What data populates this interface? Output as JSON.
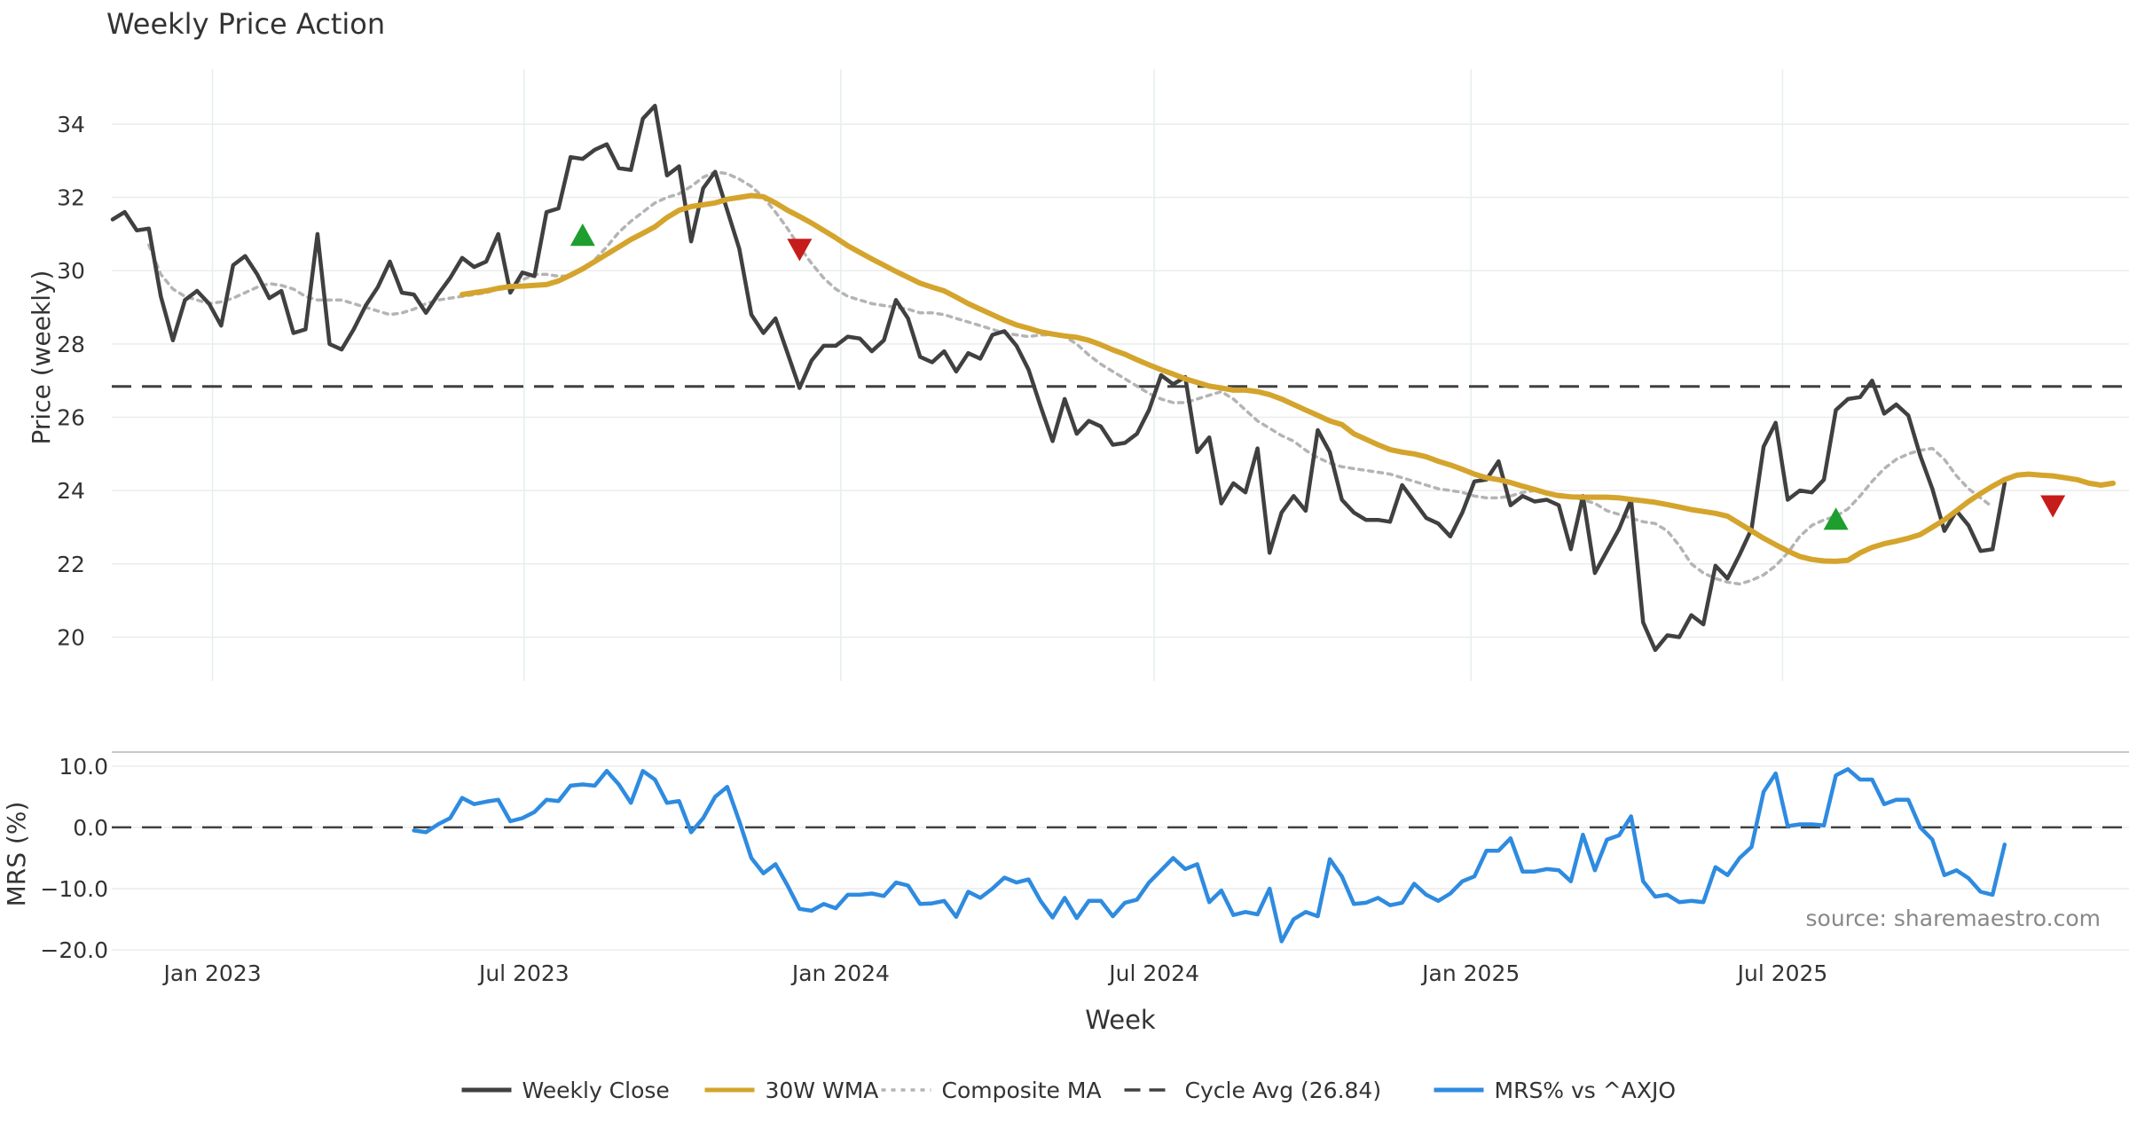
{
  "chart_data": [
    {
      "type": "line",
      "panel": "price",
      "title": "Weekly Price Action",
      "ylabel": "Price (weekly)",
      "xlabel": "Week",
      "ylim": [
        18.8,
        35.5
      ],
      "yticks": [
        20,
        22,
        24,
        26,
        28,
        30,
        32,
        34
      ],
      "grid": true,
      "x_start": "2022-11-04",
      "x_end": "2025-11-21",
      "series": [
        {
          "name": "Weekly Close",
          "color": "#404040",
          "style": "solid",
          "start_week": 0,
          "values": [
            31.4,
            31.6,
            31.1,
            31.15,
            29.3,
            28.1,
            29.2,
            29.45,
            29.1,
            28.5,
            30.15,
            30.4,
            29.9,
            29.25,
            29.45,
            28.3,
            28.4,
            31.0,
            28.0,
            27.85,
            28.4,
            29.05,
            29.55,
            30.25,
            29.4,
            29.35,
            28.85,
            29.35,
            29.8,
            30.35,
            30.1,
            30.25,
            31.0,
            29.4,
            29.95,
            29.85,
            31.6,
            31.7,
            33.1,
            33.05,
            33.3,
            33.45,
            32.8,
            32.75,
            34.15,
            34.5,
            32.6,
            32.85,
            30.8,
            32.25,
            32.7,
            31.65,
            30.6,
            28.8,
            28.3,
            28.7,
            27.75,
            26.8,
            27.55,
            27.95,
            27.95,
            28.2,
            28.15,
            27.8,
            28.1,
            29.2,
            28.7,
            27.65,
            27.5,
            27.8,
            27.25,
            27.75,
            27.6,
            28.25,
            28.35,
            27.95,
            27.3,
            26.3,
            25.35,
            26.5,
            25.55,
            25.9,
            25.75,
            25.25,
            25.3,
            25.55,
            26.2,
            27.15,
            26.9,
            27.1,
            25.05,
            25.45,
            23.65,
            24.2,
            23.95,
            25.15,
            22.3,
            23.4,
            23.85,
            23.45,
            25.65,
            25.05,
            23.75,
            23.4,
            23.2,
            23.2,
            23.15,
            24.15,
            23.7,
            23.25,
            23.1,
            22.75,
            23.4,
            24.25,
            24.3,
            24.8,
            23.6,
            23.85,
            23.7,
            23.75,
            23.6,
            22.4,
            23.85,
            21.75,
            22.35,
            22.95,
            23.75,
            20.4,
            19.65,
            20.05,
            20.0,
            20.6,
            20.35,
            21.95,
            21.6,
            22.25,
            22.95,
            25.2,
            25.85,
            23.75,
            24.0,
            23.95,
            24.3,
            26.2,
            26.5,
            26.55,
            27.0,
            26.1,
            26.35,
            26.05,
            24.95,
            24.05,
            22.9,
            23.45,
            23.05,
            22.35,
            22.4,
            24.2
          ]
        },
        {
          "name": "30W WMA",
          "color": "#d4a42c",
          "style": "solid",
          "start_week": 29,
          "values": [
            29.35,
            29.4,
            29.45,
            29.52,
            29.57,
            29.58,
            29.6,
            29.62,
            29.72,
            29.88,
            30.05,
            30.25,
            30.45,
            30.65,
            30.85,
            31.02,
            31.2,
            31.45,
            31.65,
            31.75,
            31.8,
            31.85,
            31.95,
            32.0,
            32.05,
            32.02,
            31.85,
            31.65,
            31.48,
            31.3,
            31.1,
            30.9,
            30.68,
            30.5,
            30.32,
            30.15,
            29.98,
            29.82,
            29.66,
            29.55,
            29.45,
            29.28,
            29.1,
            28.95,
            28.8,
            28.65,
            28.52,
            28.43,
            28.33,
            28.27,
            28.22,
            28.18,
            28.1,
            27.98,
            27.84,
            27.72,
            27.57,
            27.43,
            27.3,
            27.18,
            27.05,
            26.95,
            26.85,
            26.8,
            26.74,
            26.74,
            26.7,
            26.62,
            26.5,
            26.35,
            26.2,
            26.05,
            25.9,
            25.8,
            25.55,
            25.4,
            25.25,
            25.12,
            25.05,
            25.0,
            24.92,
            24.8,
            24.7,
            24.58,
            24.45,
            24.35,
            24.3,
            24.22,
            24.12,
            24.03,
            23.93,
            23.86,
            23.83,
            23.82,
            23.82,
            23.82,
            23.8,
            23.76,
            23.72,
            23.68,
            23.62,
            23.55,
            23.48,
            23.43,
            23.38,
            23.3,
            23.1,
            22.9,
            22.7,
            22.52,
            22.35,
            22.2,
            22.12,
            22.08,
            22.07,
            22.1,
            22.3,
            22.45,
            22.55,
            22.62,
            22.7,
            22.8,
            23.0,
            23.2,
            23.45,
            23.7,
            23.92,
            24.12,
            24.3,
            24.42,
            24.45,
            24.42,
            24.4,
            24.35,
            24.3,
            24.2,
            24.15,
            24.2
          ]
        },
        {
          "name": "Composite MA",
          "color": "#b4b4b4",
          "style": "dotted",
          "start_week": 3,
          "values": [
            30.7,
            29.9,
            29.5,
            29.3,
            29.2,
            29.1,
            29.15,
            29.25,
            29.4,
            29.55,
            29.65,
            29.6,
            29.5,
            29.3,
            29.2,
            29.2,
            29.2,
            29.1,
            29.0,
            28.9,
            28.8,
            28.85,
            28.95,
            29.1,
            29.2,
            29.25,
            29.3,
            29.35,
            29.4,
            29.5,
            29.6,
            29.75,
            29.9,
            29.9,
            29.85,
            29.85,
            30.05,
            30.3,
            30.65,
            31.05,
            31.35,
            31.6,
            31.85,
            32.0,
            32.1,
            32.3,
            32.55,
            32.7,
            32.65,
            32.5,
            32.3,
            32.0,
            31.6,
            31.15,
            30.65,
            30.2,
            29.8,
            29.5,
            29.3,
            29.2,
            29.1,
            29.05,
            29.0,
            28.95,
            28.85,
            28.85,
            28.8,
            28.7,
            28.6,
            28.5,
            28.4,
            28.3,
            28.25,
            28.2,
            28.25,
            28.25,
            28.2,
            28.0,
            27.7,
            27.45,
            27.25,
            27.05,
            26.85,
            26.65,
            26.5,
            26.4,
            26.4,
            26.5,
            26.6,
            26.7,
            26.5,
            26.2,
            25.9,
            25.7,
            25.5,
            25.35,
            25.1,
            24.9,
            24.75,
            24.65,
            24.6,
            24.55,
            24.5,
            24.45,
            24.35,
            24.25,
            24.15,
            24.05,
            24.0,
            23.95,
            23.85,
            23.8,
            23.8,
            23.85,
            23.95,
            24.0,
            23.95,
            23.9,
            23.85,
            23.75,
            23.65,
            23.45,
            23.35,
            23.25,
            23.15,
            23.1,
            22.9,
            22.5,
            22.0,
            21.75,
            21.6,
            21.5,
            21.45,
            21.55,
            21.7,
            21.95,
            22.3,
            22.75,
            23.05,
            23.2,
            23.3,
            23.5,
            23.85,
            24.25,
            24.6,
            24.85,
            25.0,
            25.1,
            25.15,
            24.85,
            24.4,
            24.05,
            23.8,
            23.55
          ]
        }
      ],
      "reference_lines": [
        {
          "name": "Cycle Avg (26.84)",
          "value": 26.84,
          "color": "#404040",
          "style": "dashed"
        }
      ],
      "markers": [
        {
          "type": "buy",
          "shape": "triangle-up",
          "color": "#1e9e2e",
          "week": 39,
          "value": 30.95
        },
        {
          "type": "sell",
          "shape": "triangle-down",
          "color": "#c61c1c",
          "week": 57,
          "value": 30.6
        },
        {
          "type": "buy",
          "shape": "triangle-up",
          "color": "#1e9e2e",
          "week": 143,
          "value": 23.2
        },
        {
          "type": "sell",
          "shape": "triangle-down",
          "color": "#c61c1c",
          "week": 161,
          "value": 23.6
        }
      ]
    },
    {
      "type": "line",
      "panel": "mrs",
      "ylabel": "MRS (%)",
      "ylim": [
        -21,
        12
      ],
      "yticks": [
        10.0,
        0.0,
        -10.0,
        -20.0
      ],
      "ytick_labels": [
        "10.0",
        "0.0",
        "−10.0",
        "−20.0"
      ],
      "x_start": "2022-11-04",
      "x_end": "2025-11-21",
      "xticks": [
        "Jan 2023",
        "Jul 2023",
        "Jan 2024",
        "Jul 2024",
        "Jan 2025",
        "Jul 2025"
      ],
      "series": [
        {
          "name": "MRS% vs ^AXJO",
          "color": "#2e8be0",
          "style": "solid",
          "start_week": 25,
          "values": [
            -0.5,
            -0.8,
            0.5,
            1.5,
            4.8,
            3.8,
            4.2,
            4.5,
            1.0,
            1.5,
            2.5,
            4.5,
            4.3,
            6.8,
            7.0,
            6.8,
            9.2,
            7.0,
            4.0,
            9.2,
            7.8,
            4.0,
            4.3,
            -0.8,
            1.5,
            5.0,
            6.6,
            1.0,
            -5.0,
            -7.5,
            -6.0,
            -9.5,
            -13.3,
            -13.6,
            -12.5,
            -13.2,
            -11.0,
            -11.0,
            -10.8,
            -11.2,
            -9.0,
            -9.5,
            -12.5,
            -12.4,
            -12.0,
            -14.6,
            -10.5,
            -11.5,
            -10.0,
            -8.2,
            -9.0,
            -8.5,
            -12.0,
            -14.7,
            -11.5,
            -14.8,
            -12.0,
            -12.0,
            -14.5,
            -12.3,
            -11.8,
            -9.0,
            -7.0,
            -5.0,
            -6.8,
            -6.0,
            -12.2,
            -10.3,
            -14.3,
            -13.8,
            -14.2,
            -10.0,
            -18.6,
            -15.0,
            -13.8,
            -14.5,
            -5.2,
            -8.0,
            -12.5,
            -12.3,
            -11.5,
            -12.7,
            -12.3,
            -9.2,
            -11.0,
            -12.0,
            -10.8,
            -8.8,
            -8.0,
            -3.8,
            -3.8,
            -1.8,
            -7.2,
            -7.2,
            -6.8,
            -7.0,
            -8.8,
            -1.2,
            -7.0,
            -2.0,
            -1.3,
            1.8,
            -8.8,
            -11.3,
            -11.0,
            -12.2,
            -12.0,
            -12.2,
            -6.5,
            -7.8,
            -5.0,
            -3.2,
            5.8,
            8.8,
            0.2,
            0.5,
            0.5,
            0.3,
            8.5,
            9.5,
            7.8,
            7.8,
            3.8,
            4.5,
            4.5,
            0.0,
            -2.0,
            -7.8,
            -7.0,
            -8.3,
            -10.5,
            -11.0,
            -2.8
          ]
        }
      ],
      "reference_lines": [
        {
          "value": 0.0,
          "color": "#404040",
          "style": "dashed"
        }
      ],
      "annotation": "source: sharemaestro.com"
    }
  ],
  "legend": {
    "placement": "bottom-center",
    "items": [
      {
        "label": "Weekly Close",
        "color": "#404040",
        "style": "solid"
      },
      {
        "label": "30W WMA",
        "color": "#d4a42c",
        "style": "solid"
      },
      {
        "label": "Composite MA",
        "color": "#b4b4b4",
        "style": "dotted"
      },
      {
        "label": "Cycle Avg (26.84)",
        "color": "#404040",
        "style": "dashed"
      },
      {
        "label": "MRS% vs ^AXJO",
        "color": "#2e8be0",
        "style": "solid"
      }
    ]
  }
}
